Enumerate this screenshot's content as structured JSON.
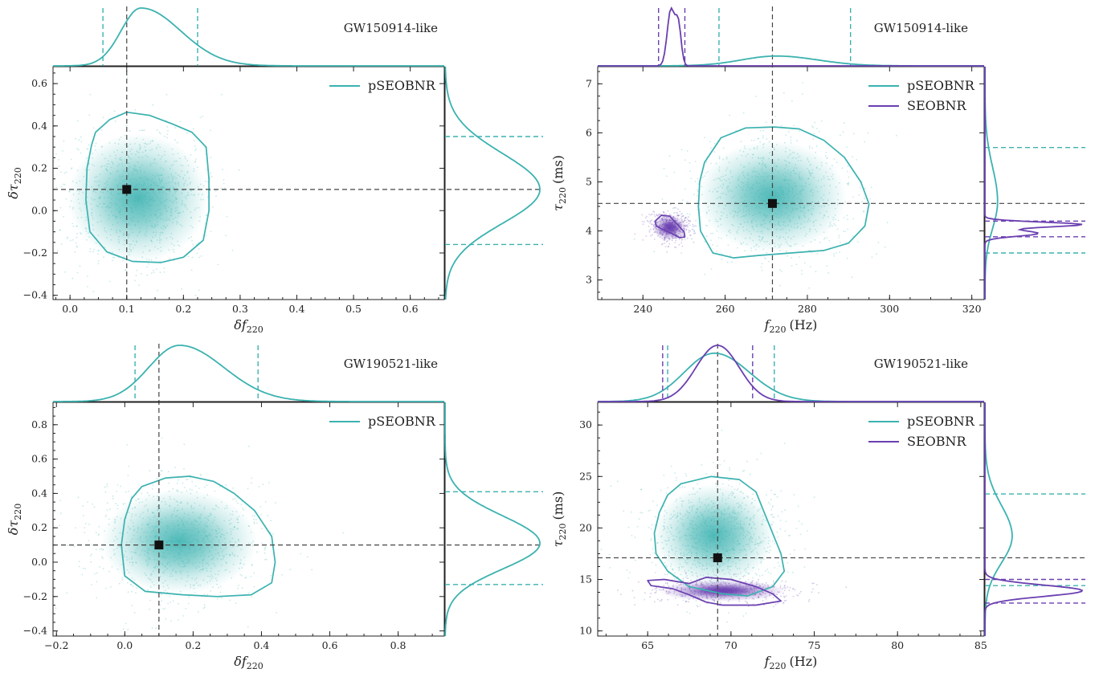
{
  "figure": {
    "background": "#ffffff"
  },
  "colors": {
    "pSEOBNR": "#3bb2b0",
    "SEOBNR": "#6a3fb0",
    "truth_line": "#444444",
    "marker": "#111111"
  },
  "chart_data": [
    {
      "id": "tl",
      "type": "scatter",
      "title": "",
      "event_label": "GW150914-like",
      "xlabel": "δf",
      "xlabel_sub": "220",
      "xlabel_unit": "",
      "ylabel": "δτ",
      "ylabel_sub": "220",
      "ylabel_unit": "",
      "xlim": [
        -0.03,
        0.66
      ],
      "ylim": [
        -0.42,
        0.68
      ],
      "xticks": [
        0.0,
        0.1,
        0.2,
        0.3,
        0.4,
        0.5,
        0.6
      ],
      "xtick_labels": [
        "0.0",
        "0.1",
        "0.2",
        "0.3",
        "0.4",
        "0.5",
        "0.6"
      ],
      "yticks": [
        -0.4,
        -0.2,
        0.0,
        0.2,
        0.4,
        0.6
      ],
      "ytick_labels": [
        "−0.4",
        "−0.2",
        "0.0",
        "0.2",
        "0.4",
        "0.6"
      ],
      "legend": {
        "position": "top-right",
        "entries": [
          "pSEOBNR"
        ]
      },
      "truth": [
        0.1,
        0.1
      ],
      "series": [
        {
          "name": "pSEOBNR",
          "color": "#3bb2b0",
          "density_center": [
            0.12,
            0.06
          ],
          "density_spread": [
            0.065,
            0.16
          ],
          "contour": [
            [
              0.045,
              0.37
            ],
            [
              0.07,
              0.43
            ],
            [
              0.1,
              0.465
            ],
            [
              0.14,
              0.45
            ],
            [
              0.18,
              0.41
            ],
            [
              0.215,
              0.37
            ],
            [
              0.24,
              0.3
            ],
            [
              0.245,
              0.15
            ],
            [
              0.245,
              0.0
            ],
            [
              0.235,
              -0.14
            ],
            [
              0.2,
              -0.22
            ],
            [
              0.16,
              -0.245
            ],
            [
              0.11,
              -0.24
            ],
            [
              0.065,
              -0.195
            ],
            [
              0.035,
              -0.1
            ],
            [
              0.028,
              0.05
            ],
            [
              0.03,
              0.2
            ],
            [
              0.038,
              0.31
            ]
          ],
          "x_marginal": {
            "peak": 0.125,
            "width_left": 0.035,
            "width_right": 0.07,
            "interval": [
              0.058,
              0.225
            ]
          },
          "y_marginal": {
            "peak": 0.1,
            "width_low": 0.16,
            "width_high": 0.17,
            "interval": [
              -0.16,
              0.35
            ]
          }
        }
      ]
    },
    {
      "id": "tr",
      "type": "scatter",
      "title": "",
      "event_label": "GW150914-like",
      "xlabel": "f",
      "xlabel_sub": "220",
      "xlabel_unit": "(Hz)",
      "ylabel": "τ",
      "ylabel_sub": "220",
      "ylabel_unit": "(ms)",
      "xlim": [
        229,
        323
      ],
      "ylim": [
        2.6,
        7.35
      ],
      "xticks": [
        240,
        260,
        280,
        300,
        320
      ],
      "xtick_labels": [
        "240",
        "260",
        "280",
        "300",
        "320"
      ],
      "yticks": [
        3,
        4,
        5,
        6,
        7
      ],
      "ytick_labels": [
        "3",
        "4",
        "5",
        "6",
        "7"
      ],
      "legend": {
        "position": "top-right",
        "entries": [
          "pSEOBNR",
          "SEOBNR"
        ]
      },
      "truth": [
        271.5,
        4.56
      ],
      "series": [
        {
          "name": "pSEOBNR",
          "color": "#3bb2b0",
          "density_center": [
            271.5,
            4.7
          ],
          "density_spread": [
            9.5,
            0.6
          ],
          "contour": [
            [
              255,
              5.4
            ],
            [
              259,
              5.9
            ],
            [
              265,
              6.1
            ],
            [
              272,
              6.12
            ],
            [
              278,
              6.08
            ],
            [
              284,
              5.85
            ],
            [
              289,
              5.5
            ],
            [
              293,
              5.0
            ],
            [
              295,
              4.55
            ],
            [
              294,
              4.1
            ],
            [
              290,
              3.75
            ],
            [
              284,
              3.6
            ],
            [
              276,
              3.55
            ],
            [
              268,
              3.5
            ],
            [
              262,
              3.45
            ],
            [
              257,
              3.55
            ],
            [
              254,
              4.0
            ],
            [
              253.5,
              4.5
            ],
            [
              253.8,
              5.0
            ]
          ],
          "x_marginal": {
            "peak": 272.5,
            "width_left": 8.5,
            "width_right": 10,
            "interval": [
              258.5,
              290.5
            ]
          },
          "y_marginal": {
            "peak": 4.6,
            "width_low": 0.55,
            "width_high": 0.7,
            "interval": [
              3.55,
              5.7
            ]
          }
        },
        {
          "name": "SEOBNR",
          "color": "#6a3fb0",
          "density_center": [
            246.5,
            4.07
          ],
          "density_spread": [
            2.2,
            0.14
          ],
          "contour": [
            [
              243,
              4.2
            ],
            [
              244.5,
              4.32
            ],
            [
              246.5,
              4.3
            ],
            [
              248.5,
              4.12
            ],
            [
              250,
              3.98
            ],
            [
              250.2,
              3.88
            ],
            [
              249,
              3.86
            ],
            [
              247,
              3.95
            ],
            [
              245,
              4.02
            ],
            [
              243.2,
              4.1
            ]
          ],
          "x_marginal_peaks": [
            [
              246.8,
              1.0,
              0.9
            ],
            [
              248.6,
              0.72,
              0.7
            ]
          ],
          "x_interval": [
            243.8,
            250.2
          ],
          "y_marginal_peaks": [
            [
              4.13,
              1.0,
              0.05
            ],
            [
              3.95,
              0.55,
              0.06
            ]
          ],
          "y_interval": [
            3.88,
            4.2
          ]
        }
      ]
    },
    {
      "id": "bl",
      "type": "scatter",
      "title": "",
      "event_label": "GW190521-like",
      "xlabel": "δf",
      "xlabel_sub": "220",
      "xlabel_unit": "",
      "ylabel": "δτ",
      "ylabel_sub": "220",
      "ylabel_unit": "",
      "xlim": [
        -0.21,
        0.935
      ],
      "ylim": [
        -0.43,
        0.93
      ],
      "xticks": [
        -0.2,
        0.0,
        0.2,
        0.4,
        0.6,
        0.8
      ],
      "xtick_labels": [
        "−0.2",
        "0.0",
        "0.2",
        "0.4",
        "0.6",
        "0.8"
      ],
      "yticks": [
        -0.4,
        -0.2,
        0.0,
        0.2,
        0.4,
        0.6,
        0.8
      ],
      "ytick_labels": [
        "−0.4",
        "−0.2",
        "0.0",
        "0.2",
        "0.4",
        "0.6",
        "0.8"
      ],
      "legend": {
        "position": "top-right",
        "entries": [
          "pSEOBNR"
        ]
      },
      "truth": [
        0.1,
        0.1
      ],
      "series": [
        {
          "name": "pSEOBNR",
          "color": "#3bb2b0",
          "density_center": [
            0.16,
            0.12
          ],
          "density_spread": [
            0.12,
            0.16
          ],
          "contour": [
            [
              0.05,
              0.44
            ],
            [
              0.12,
              0.49
            ],
            [
              0.19,
              0.5
            ],
            [
              0.26,
              0.47
            ],
            [
              0.32,
              0.4
            ],
            [
              0.38,
              0.3
            ],
            [
              0.43,
              0.15
            ],
            [
              0.44,
              0.0
            ],
            [
              0.43,
              -0.12
            ],
            [
              0.37,
              -0.19
            ],
            [
              0.27,
              -0.2
            ],
            [
              0.17,
              -0.19
            ],
            [
              0.06,
              -0.17
            ],
            [
              0.0,
              -0.08
            ],
            [
              -0.01,
              0.1
            ],
            [
              0.0,
              0.25
            ],
            [
              0.02,
              0.37
            ]
          ],
          "x_marginal": {
            "peak": 0.16,
            "width_left": 0.09,
            "width_right": 0.13,
            "interval": [
              0.03,
              0.39
            ]
          },
          "y_marginal": {
            "peak": 0.11,
            "width_low": 0.15,
            "width_high": 0.16,
            "interval": [
              -0.13,
              0.41
            ]
          }
        }
      ]
    },
    {
      "id": "br",
      "type": "scatter",
      "title": "",
      "event_label": "GW190521-like",
      "xlabel": "f",
      "xlabel_sub": "220",
      "xlabel_unit": "(Hz)",
      "ylabel": "τ",
      "ylabel_sub": "220",
      "ylabel_unit": "(ms)",
      "xlim": [
        62,
        85.2
      ],
      "ylim": [
        9.5,
        32.2
      ],
      "xticks": [
        65,
        70,
        75,
        80,
        85
      ],
      "xtick_labels": [
        "65",
        "70",
        "75",
        "80",
        "85"
      ],
      "yticks": [
        10,
        15,
        20,
        25,
        30
      ],
      "ytick_labels": [
        "10",
        "15",
        "20",
        "25",
        "30"
      ],
      "legend": {
        "position": "top-right",
        "entries": [
          "pSEOBNR",
          "SEOBNR"
        ]
      },
      "truth": [
        69.2,
        17.1
      ],
      "series": [
        {
          "name": "pSEOBNR",
          "color": "#3bb2b0",
          "density_center": [
            69.0,
            19.3
          ],
          "density_spread": [
            1.9,
            2.6
          ],
          "contour": [
            [
              67,
              24.3
            ],
            [
              68.8,
              25.0
            ],
            [
              70.5,
              24.7
            ],
            [
              71.5,
              23.5
            ],
            [
              72.0,
              21.5
            ],
            [
              72.5,
              19.5
            ],
            [
              73.0,
              17.5
            ],
            [
              73.2,
              15.8
            ],
            [
              72.5,
              14.3
            ],
            [
              71,
              13.4
            ],
            [
              69.5,
              13.6
            ],
            [
              67.5,
              14.3
            ],
            [
              66.2,
              15.8
            ],
            [
              65.5,
              17.5
            ],
            [
              65.4,
              19.5
            ],
            [
              65.7,
              21.5
            ],
            [
              66.2,
              23.2
            ]
          ],
          "x_marginal": {
            "peak": 69.0,
            "width_left": 1.8,
            "width_right": 2.1,
            "interval": [
              66.2,
              72.6
            ]
          },
          "y_marginal": {
            "peak": 19.2,
            "width_low": 2.6,
            "width_high": 3.0,
            "interval": [
              14.4,
              23.3
            ]
          }
        },
        {
          "name": "SEOBNR",
          "color": "#6a3fb0",
          "density_center": [
            69.5,
            13.9
          ],
          "density_spread": [
            2.0,
            0.55
          ],
          "contour": [
            [
              65,
              14.9
            ],
            [
              66,
              15.0
            ],
            [
              67.5,
              14.6
            ],
            [
              68.5,
              15.2
            ],
            [
              70,
              15.0
            ],
            [
              71.5,
              14.3
            ],
            [
              72.5,
              13.6
            ],
            [
              73.0,
              12.9
            ],
            [
              71.5,
              12.5
            ],
            [
              69.5,
              12.5
            ],
            [
              68.5,
              12.8
            ],
            [
              67.5,
              13.5
            ],
            [
              66.5,
              14.1
            ],
            [
              65.2,
              14.4
            ]
          ],
          "x_marginal": {
            "peak": 69.2,
            "width_left": 1.3,
            "width_right": 1.3,
            "interval": [
              65.9,
              71.3
            ]
          },
          "y_marginal": {
            "peak": 13.9,
            "width_low": 0.55,
            "width_high": 0.55,
            "interval": [
              12.7,
              15.0
            ]
          }
        }
      ]
    }
  ]
}
